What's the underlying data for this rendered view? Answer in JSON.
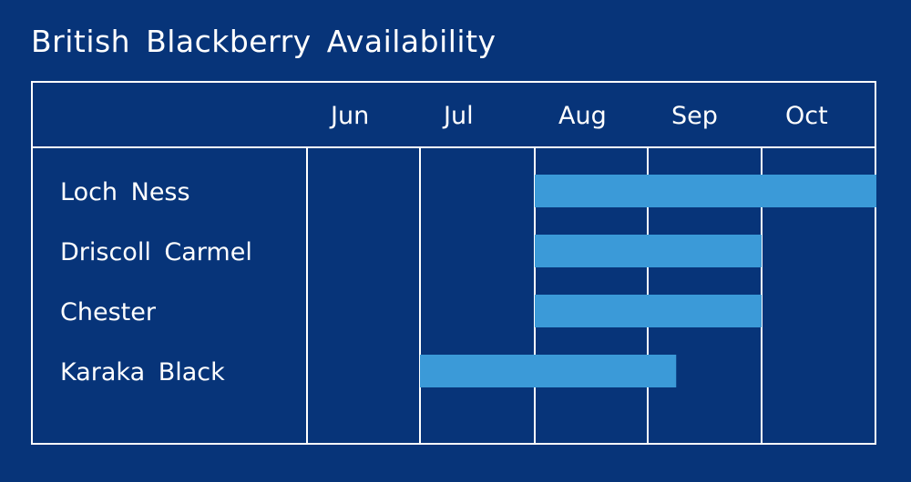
{
  "chart_data": {
    "type": "gantt",
    "title": "British Blackberry Availability",
    "months": [
      "Jun",
      "Jul",
      "Aug",
      "Sep",
      "Oct"
    ],
    "rows": [
      {
        "variety": "Loch Ness",
        "start": "Aug",
        "end": "end of Oct"
      },
      {
        "variety": "Driscoll Carmel",
        "start": "Aug",
        "end": "Sep"
      },
      {
        "variety": "Chester",
        "start": "Aug",
        "end": "Sep"
      },
      {
        "variety": "Karaka Black",
        "start": "Jul",
        "end": "early Sep"
      }
    ],
    "bar_spans_month_index": [
      [
        2,
        5
      ],
      [
        2,
        4
      ],
      [
        2,
        4
      ],
      [
        1,
        3.25
      ]
    ],
    "colors": {
      "background": "#073479",
      "bar": "#3b9ad8",
      "grid": "#ffffff",
      "text": "#ffffff"
    }
  }
}
